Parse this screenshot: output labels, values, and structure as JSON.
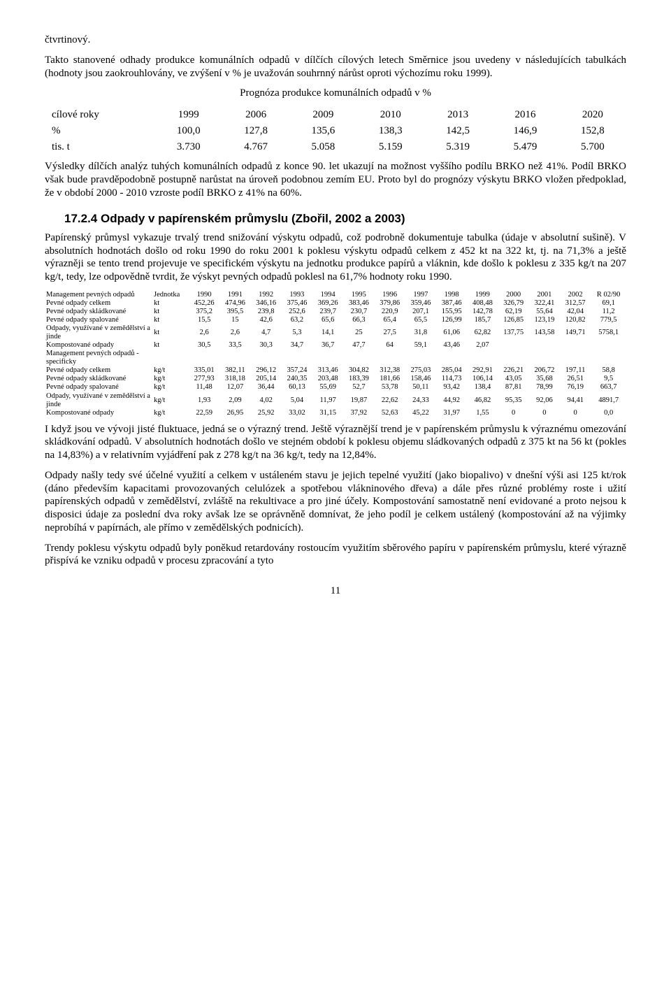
{
  "para1_frag": "čtvrtinový.",
  "para2": "Takto stanovené odhady produkce komunálních odpadů v dílčích cílových letech Směrnice jsou uvedeny v následujících tabulkách (hodnoty jsou zaokrouhlovány, ve zvýšení v  % je uvažován souhrnný nárůst oproti výchozímu roku 1999).",
  "t1": {
    "title": "Prognóza produkce komunálních odpadů v %",
    "header": [
      "cílové roky",
      "1999",
      "2006",
      "2009",
      "2010",
      "2013",
      "2016",
      "2020"
    ],
    "rows": [
      [
        "%",
        "100,0",
        "127,8",
        "135,6",
        "138,3",
        "142,5",
        "146,9",
        "152,8"
      ],
      [
        "tis. t",
        "3.730",
        "4.767",
        "5.058",
        "5.159",
        "5.319",
        "5.479",
        "5.700"
      ]
    ]
  },
  "para3": "Výsledky dílčích analýz tuhých komunálních odpadů z konce 90. let ukazují na možnost vyššího podílu BRKO než 41%. Podíl BRKO však bude pravděpodobně postupně narůstat na úroveň podobnou zemím EU. Proto byl do prognózy výskytu BRKO vložen předpoklad, že v období 2000 - 2010 vzroste podíl BRKO z 41% na 60%.",
  "heading": "17.2.4 Odpady v papírenském průmyslu (Zbořil, 2002 a 2003)",
  "para4": "Papírenský průmysl vykazuje trvalý trend snižování výskytu odpadů, což podrobně dokumentuje tabulka (údaje v absolutní sušině). V absolutních hodnotách došlo od roku 1990 do roku 2001 k poklesu výskytu odpadů celkem z 452 kt na 322 kt, tj. na 71,3% a ještě výrazněji se tento trend projevuje ve specifickém výskytu na jednotku produkce papírů a vláknin, kde došlo k poklesu z 335 kg/t na 207 kg/t, tedy, lze odpovědně tvrdit, že výskyt pevných odpadů poklesl na 61,7% hodnoty roku 1990.",
  "t2": {
    "header": [
      "Management pevných odpadů",
      "Jednotka",
      "1990",
      "1991",
      "1992",
      "1993",
      "1994",
      "1995",
      "1996",
      "1997",
      "1998",
      "1999",
      "2000",
      "2001",
      "2002",
      "R 02/90"
    ],
    "rows": [
      [
        "Pevné odpady celkem",
        "kt",
        "452,26",
        "474,96",
        "346,16",
        "375,46",
        "369,26",
        "383,46",
        "379,86",
        "359,46",
        "387,46",
        "408,48",
        "326,79",
        "322,41",
        "312,57",
        "69,1"
      ],
      [
        "Pevné odpady skládkované",
        "kt",
        "375,2",
        "395,5",
        "239,8",
        "252,6",
        "239,7",
        "230,7",
        "220,9",
        "207,1",
        "155,95",
        "142,78",
        "62,19",
        "55,64",
        "42,04",
        "11,2"
      ],
      [
        "Pevné odpady spalované",
        "kt",
        "15,5",
        "15",
        "42,6",
        "63,2",
        "65,6",
        "66,3",
        "65,4",
        "65,5",
        "126,99",
        "185,7",
        "126,85",
        "123,19",
        "120,82",
        "779,5"
      ],
      [
        "Odpady, využívané v zemědělství a jinde",
        "kt",
        "2,6",
        "2,6",
        "4,7",
        "5,3",
        "14,1",
        "25",
        "27,5",
        "31,8",
        "61,06",
        "62,82",
        "137,75",
        "143,58",
        "149,71",
        "5758,1"
      ],
      [
        "Kompostované odpady",
        "kt",
        "30,5",
        "33,5",
        "30,3",
        "34,7",
        "36,7",
        "47,7",
        "64",
        "59,1",
        "43,46",
        "2,07",
        "",
        "",
        "",
        ""
      ],
      [
        "Management pevných odpadů - specificky",
        "",
        "",
        "",
        "",
        "",
        "",
        "",
        "",
        "",
        "",
        "",
        "",
        "",
        "",
        ""
      ],
      [
        "Pevné odpady celkem",
        "kg/t",
        "335,01",
        "382,11",
        "296,12",
        "357,24",
        "313,46",
        "304,82",
        "312,38",
        "275,03",
        "285,04",
        "292,91",
        "226,21",
        "206,72",
        "197,11",
        "58,8"
      ],
      [
        "Pevné odpady skládkované",
        "kg/t",
        "277,93",
        "318,18",
        "205,14",
        "240,35",
        "203,48",
        "183,39",
        "181,66",
        "158,46",
        "114,73",
        "106,14",
        "43,05",
        "35,68",
        "26,51",
        "9,5"
      ],
      [
        "Pevné odpady spalované",
        "kg/t",
        "11,48",
        "12,07",
        "36,44",
        "60,13",
        "55,69",
        "52,7",
        "53,78",
        "50,11",
        "93,42",
        "138,4",
        "87,81",
        "78,99",
        "76,19",
        "663,7"
      ],
      [
        "Odpady, využívané v zemědělství a jinde",
        "kg/t",
        "1,93",
        "2,09",
        "4,02",
        "5,04",
        "11,97",
        "19,87",
        "22,62",
        "24,33",
        "44,92",
        "46,82",
        "95,35",
        "92,06",
        "94,41",
        "4891,7"
      ],
      [
        "Kompostované odpady",
        "kg/t",
        "22,59",
        "26,95",
        "25,92",
        "33,02",
        "31,15",
        "37,92",
        "52,63",
        "45,22",
        "31,97",
        "1,55",
        "0",
        "0",
        "0",
        "0,0"
      ]
    ]
  },
  "para5": "I když jsou ve vývoji jisté fluktuace, jedná se o výrazný trend. Ještě výraznější trend je v papírenském průmyslu k výraznému omezování skládkování odpadů. V absolutních hodnotách došlo ve stejném období k poklesu objemu sládkovaných odpadů z 375 kt na 56 kt (pokles na 14,83%) a v relativním vyjádření pak z 278 kg/t na 36 kg/t, tedy na 12,84%.",
  "para6": "Odpady našly tedy své účelné využití a celkem v ustáleném stavu je jejich tepelné využití (jako biopalivo) v dnešní výši asi 125 kt/rok (dáno především kapacitami provozovaných celulózek a spotřebou vlákninového dřeva) a dále přes různé problémy roste i užití papírenských odpadů v zemědělství, zvláště na rekultivace a pro jiné účely. Kompostování samostatně není evidované a proto nejsou k disposici údaje za poslední dva roky avšak lze se oprávněně domnívat, že jeho podíl je celkem ustálený (kompostování až na výjimky neprobíhá v papírnách, ale přímo v zemědělských podnicích).",
  "para7": "Trendy poklesu výskytu odpadů byly poněkud retardovány rostoucím využitím sběrového papíru v papírenském průmyslu, které výrazně přispívá ke vzniku odpadů v procesu zpracování a tyto",
  "pagenum": "11"
}
